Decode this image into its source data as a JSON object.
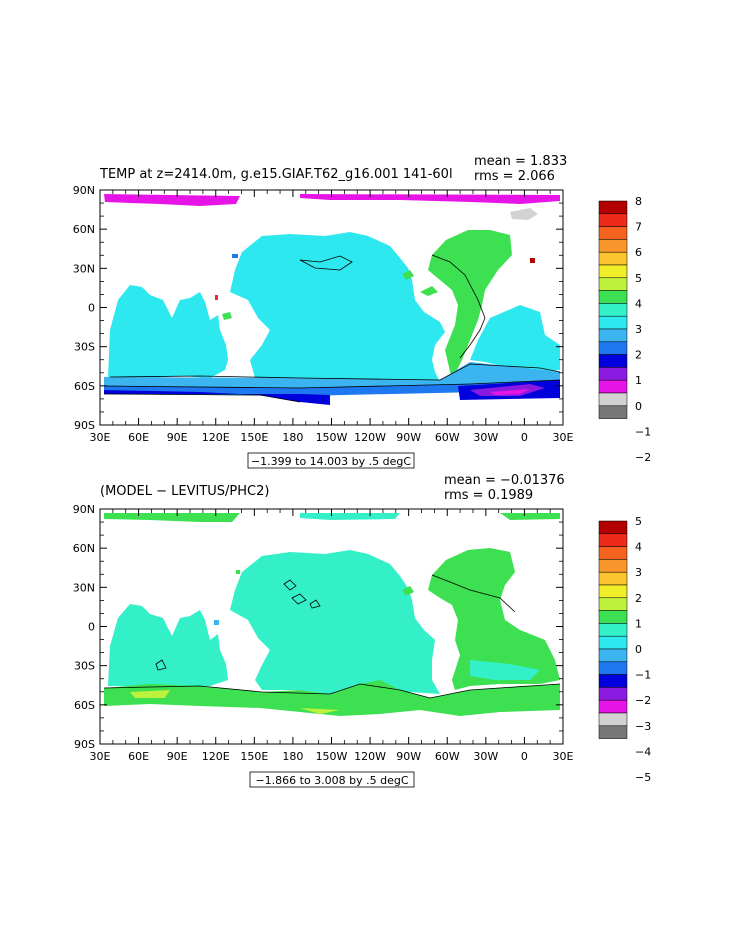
{
  "panels": [
    {
      "id": "top",
      "title": "TEMP at z=2414.0m, g.e15.GIAF.T62_g16.001 141-60l",
      "mean_label": "mean = 1.833",
      "rms_label": "rms = 2.066",
      "range_label": "−1.399 to 14.003 by .5 degC",
      "lat_ticks": [
        "90N",
        "60N",
        "30N",
        "0",
        "30S",
        "60S",
        "90S"
      ],
      "lon_ticks": [
        "30E",
        "60E",
        "90E",
        "120E",
        "150E",
        "180",
        "150W",
        "120W",
        "90W",
        "60W",
        "30W",
        "0",
        "30E"
      ],
      "colorbar": {
        "labels": [
          "8",
          "7",
          "6",
          "5",
          "4",
          "3",
          "2",
          "1",
          "0",
          "−1",
          "−2"
        ],
        "colors": [
          "#b40000",
          "#ee2a18",
          "#f5631e",
          "#f8962b",
          "#fcc42e",
          "#f0ee28",
          "#bcf23c",
          "#3ce050",
          "#33f0c8",
          "#2ee8f0",
          "#3cb4f0",
          "#1e78f0",
          "#0000dc",
          "#8a1ae0",
          "#e614e6",
          "#d2d2d2",
          "#787878"
        ]
      }
    },
    {
      "id": "bottom",
      "title": "(MODEL − LEVITUS/PHC2)",
      "mean_label": "mean = −0.01376",
      "rms_label": "rms = 0.1989",
      "range_label": "−1.866 to 3.008 by .5 degC",
      "lat_ticks": [
        "90N",
        "60N",
        "30N",
        "0",
        "30S",
        "60S",
        "90S"
      ],
      "lon_ticks": [
        "30E",
        "60E",
        "90E",
        "120E",
        "150E",
        "180",
        "150W",
        "120W",
        "90W",
        "60W",
        "30W",
        "0",
        "30E"
      ],
      "colorbar": {
        "labels": [
          "5",
          "4",
          "3",
          "2",
          "1",
          "0",
          "−1",
          "−2",
          "−3",
          "−4",
          "−5"
        ],
        "colors": [
          "#b40000",
          "#ee2a18",
          "#f5631e",
          "#f8962b",
          "#fcc42e",
          "#f0ee28",
          "#bcf23c",
          "#3ce050",
          "#33f0c8",
          "#2ee8f0",
          "#3cb4f0",
          "#1e78f0",
          "#0000dc",
          "#8a1ae0",
          "#e614e6",
          "#d2d2d2",
          "#787878"
        ]
      }
    }
  ]
}
